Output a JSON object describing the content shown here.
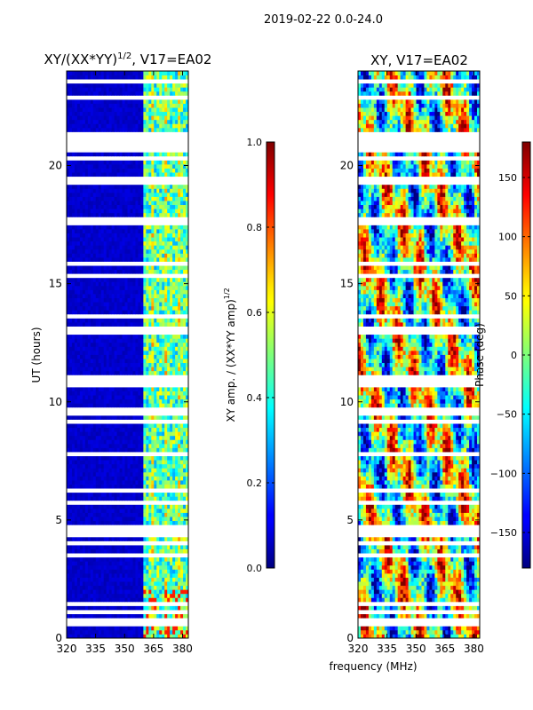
{
  "figure": {
    "suptitle": "2019-02-22 0.0-24.0",
    "shared_xlabel": "frequency (MHz)"
  },
  "chart_data": [
    {
      "type": "heatmap",
      "title": "XY/(XX*YY)",
      "title_exponent": "1/2",
      "title_suffix": ", V17=EA02",
      "xlabel": "",
      "ylabel": "UT (hours)",
      "xlim": [
        320,
        383
      ],
      "ylim": [
        0,
        24
      ],
      "x_ticks": [
        320,
        335,
        350,
        365,
        380
      ],
      "y_ticks": [
        0,
        5,
        10,
        15,
        20
      ],
      "colormap": "jet",
      "colorbar": {
        "label": "XY amp. / (XX*YY amp)",
        "label_exponent": "1/2",
        "range": [
          0.0,
          1.0
        ],
        "ticks": [
          "0.0",
          "0.2",
          "0.4",
          "0.6",
          "0.8",
          "1.0"
        ]
      }
    },
    {
      "type": "heatmap",
      "title": "XY, V17=EA02",
      "xlabel": "frequency (MHz)",
      "ylabel": "",
      "xlim": [
        320,
        383
      ],
      "ylim": [
        0,
        24
      ],
      "x_ticks": [
        320,
        335,
        350,
        365,
        380
      ],
      "y_ticks": [
        0,
        5,
        10,
        15,
        20
      ],
      "colormap": "jet",
      "colorbar": {
        "label": "Phase (deg)",
        "range": [
          -180,
          180
        ],
        "ticks": [
          "−150",
          "−100",
          "−50",
          "0",
          "50",
          "100",
          "150"
        ]
      }
    }
  ],
  "colors": {
    "cmap_low": "#00007f",
    "cmap_high": "#7f0000",
    "gap": "#ffffff",
    "axis": "#000000"
  }
}
